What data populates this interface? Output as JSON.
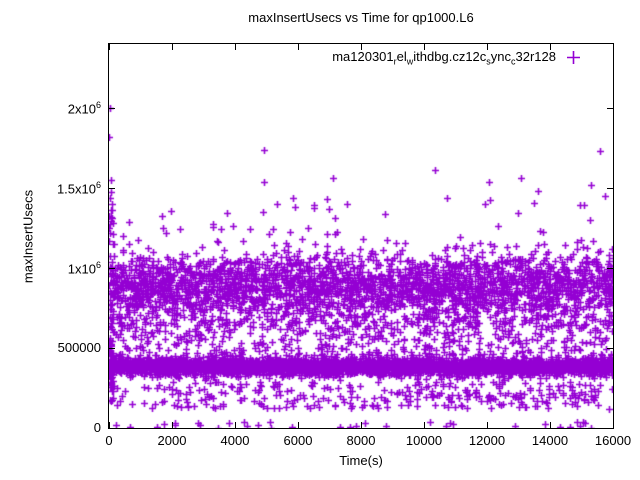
{
  "chart": {
    "title": "maxInsertUsecs vs Time for qp1000.L6",
    "xlabel": "Time(s)",
    "ylabel": "maxInsertUsecs"
  },
  "legend": {
    "marker": "plus",
    "marker_color": "#9400D3",
    "segments": [
      {
        "text": "ma120301"
      },
      {
        "text": "r",
        "sub": true
      },
      {
        "text": "el"
      },
      {
        "text": "w",
        "sub": true
      },
      {
        "text": "ithdbg.cz12c"
      },
      {
        "text": "s",
        "sub": true
      },
      {
        "text": "ync"
      },
      {
        "text": "c",
        "sub": true
      },
      {
        "text": "32r128"
      }
    ]
  },
  "chart_data": {
    "type": "scatter",
    "title": "maxInsertUsecs vs Time for qp1000.L6",
    "xlabel": "Time(s)",
    "ylabel": "maxInsertUsecs",
    "xlim": [
      0,
      16000
    ],
    "ylim": [
      0,
      2400000
    ],
    "xticks": [
      0,
      2000,
      4000,
      6000,
      8000,
      10000,
      12000,
      14000,
      16000
    ],
    "yticks": [
      {
        "value": 0,
        "label": "0"
      },
      {
        "value": 500000,
        "label": "500000"
      },
      {
        "value": 1000000,
        "label": "1x10",
        "sup": "6"
      },
      {
        "value": 1500000,
        "label": "1.5x10",
        "sup": "6"
      },
      {
        "value": 2000000,
        "label": "2x10",
        "sup": "6"
      }
    ],
    "grid": false,
    "legend_position": "top-right-inside",
    "series": [
      {
        "name": "ma120301_rel_withdbg.cz12c_sync_c32r128",
        "marker": "plus",
        "color": "#9400D3",
        "seed": 1203,
        "point_count_estimate": 7900,
        "distribution_clusters": [
          {
            "label": "upper-band",
            "n": 2900,
            "x": [
              0,
              16000
            ],
            "y": {
              "dist": "normal",
              "mean": 880000,
              "sd": 110000,
              "min": 600000,
              "max": 1280000
            }
          },
          {
            "label": "dense-low-band",
            "n": 4000,
            "x": [
              0,
              16000
            ],
            "y": {
              "dist": "normal",
              "mean": 385000,
              "sd": 27000,
              "min": 300000,
              "max": 472000
            }
          },
          {
            "label": "mid-sparse",
            "n": 520,
            "x": [
              0,
              16000
            ],
            "y": {
              "dist": "uniform",
              "min": 455000,
              "max": 705000
            }
          },
          {
            "label": "low-sparse",
            "n": 270,
            "x": [
              0,
              16000
            ],
            "y": {
              "dist": "uniform",
              "min": 120000,
              "max": 290000
            }
          },
          {
            "label": "low-right-streak",
            "n": 50,
            "x": [
              9400,
              15600
            ],
            "y": {
              "dist": "uniform",
              "min": 165000,
              "max": 235000
            }
          },
          {
            "label": "near-zero",
            "n": 34,
            "x": [
              200,
              16000
            ],
            "y": {
              "dist": "uniform",
              "min": 0,
              "max": 40000
            }
          },
          {
            "label": "upper-scatter",
            "n": 34,
            "x": [
              300,
              16000
            ],
            "y": {
              "dist": "uniform",
              "min": 1180000,
              "max": 1450000
            }
          },
          {
            "label": "startup-column",
            "n": 72,
            "x": [
              0,
              150
            ],
            "y": {
              "dist": "uniform",
              "min": 150000,
              "max": 1560000
            }
          },
          {
            "label": "startup-blob",
            "n": 36,
            "x": [
              0,
              70
            ],
            "y": {
              "dist": "uniform",
              "min": 250000,
              "max": 560000
            }
          }
        ],
        "outliers": [
          [
            30,
            2000000
          ],
          [
            10,
            1820000
          ],
          [
            4920,
            1740000
          ],
          [
            15590,
            1730000
          ],
          [
            10350,
            1610000
          ],
          [
            7110,
            1560000
          ],
          [
            13080,
            1560000
          ],
          [
            4920,
            1540000
          ],
          [
            12060,
            1540000
          ],
          [
            15300,
            1520000
          ],
          [
            13620,
            1480000
          ],
          [
            5900,
            1380000
          ],
          [
            7170,
            1310000
          ]
        ]
      }
    ]
  }
}
